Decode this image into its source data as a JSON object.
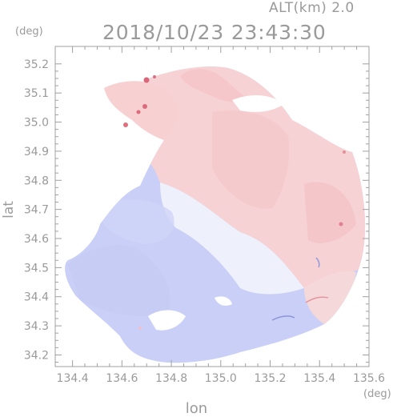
{
  "header": {
    "altitude_label": "ALT(km) 2.0",
    "timestamp": "2018/10/23 23:43:30"
  },
  "axes": {
    "x_title": "lon",
    "y_title": "lat",
    "x_unit": "(deg)",
    "y_unit": "(deg)",
    "x_ticks": [
      "134.4",
      "134.6",
      "134.8",
      "135.0",
      "135.2",
      "135.4",
      "135.6"
    ],
    "y_ticks": [
      "35.2",
      "35.1",
      "35.0",
      "34.9",
      "34.8",
      "34.7",
      "34.6",
      "34.5",
      "34.4",
      "34.3",
      "34.2"
    ],
    "x_range": [
      134.33,
      135.6
    ],
    "y_range": [
      34.16,
      35.26
    ]
  },
  "colors": {
    "approaching": "#c8cef5",
    "receding": "#f8cfd1",
    "neutral": "#f2f3fb",
    "frame": "#a0a0a0"
  }
}
